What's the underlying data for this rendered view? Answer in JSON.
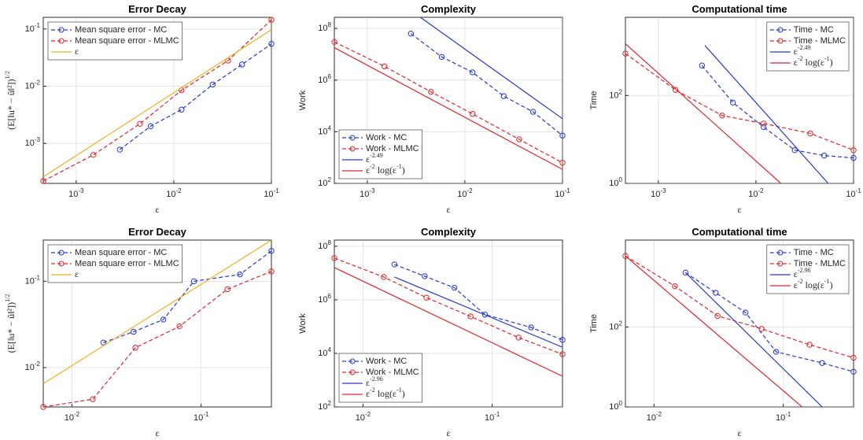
{
  "chart_data": [
    {
      "type": "line",
      "title": "Error Decay",
      "xlabel": "ε",
      "ylabel": "(E[‖u* − û‖²])^{1/2}",
      "xscale": "log",
      "yscale": "log",
      "grid": true,
      "legend": "upper left",
      "xlim": [
        0.00046,
        0.1
      ],
      "ylim": [
        0.0002,
        0.16
      ],
      "xticks": [
        {
          "value": 0.001,
          "label": "10^{-3}"
        },
        {
          "value": 0.01,
          "label": "10^{-2}"
        },
        {
          "value": 0.1,
          "label": "10^{-1}"
        }
      ],
      "yticks": [
        {
          "value": 0.001,
          "label": "10^{-3}"
        },
        {
          "value": 0.01,
          "label": "10^{-2}"
        },
        {
          "value": 0.1,
          "label": "10^{-1}"
        }
      ],
      "series": [
        {
          "name": "Mean square error - MC",
          "color": "#2638d6",
          "line": "dashed",
          "marker": "circle",
          "x": [
            0.0028,
            0.0058,
            0.012,
            0.025,
            0.05,
            0.1
          ],
          "values": [
            0.00078,
            0.002,
            0.0039,
            0.0107,
            0.024,
            0.055
          ]
        },
        {
          "name": "Mean square error - MLMC",
          "color": "#e0252a",
          "line": "dashed",
          "marker": "circle",
          "x": [
            0.00046,
            0.0015,
            0.0045,
            0.012,
            0.036,
            0.1
          ],
          "values": [
            0.00022,
            0.00063,
            0.0022,
            0.0085,
            0.028,
            0.145
          ]
        },
        {
          "name": "ε",
          "color": "#edb120",
          "line": "solid",
          "marker": "none",
          "x": [
            0.00046,
            0.1
          ],
          "values": [
            0.00026,
            0.097
          ]
        }
      ]
    },
    {
      "type": "line",
      "title": "Complexity",
      "xlabel": "ε",
      "ylabel": "Work",
      "xscale": "log",
      "yscale": "log",
      "grid": true,
      "legend": "lower left",
      "xlim": [
        0.00046,
        0.1
      ],
      "ylim": [
        100,
        270000000
      ],
      "xticks": [
        {
          "value": 0.001,
          "label": "10^{-3}"
        },
        {
          "value": 0.01,
          "label": "10^{-2}"
        },
        {
          "value": 0.1,
          "label": "10^{-1}"
        }
      ],
      "yticks": [
        {
          "value": 100,
          "label": "10^{2}"
        },
        {
          "value": 10000,
          "label": "10^{4}"
        },
        {
          "value": 1000000,
          "label": "10^{6}"
        },
        {
          "value": 100000000,
          "label": "10^{8}"
        }
      ],
      "series": [
        {
          "name": "Work - MC",
          "color": "#2638d6",
          "line": "dashed",
          "marker": "circle",
          "x": [
            0.0028,
            0.0058,
            0.012,
            0.025,
            0.05,
            0.1
          ],
          "values": [
            63000000,
            7900000,
            2000000,
            240000,
            59000,
            7100
          ]
        },
        {
          "name": "Work - MLMC",
          "color": "#e0252a",
          "line": "dashed",
          "marker": "circle",
          "x": [
            0.00046,
            0.0015,
            0.0045,
            0.012,
            0.036,
            0.1
          ],
          "values": [
            30000000,
            3400000,
            350000,
            49000,
            5100,
            630
          ]
        },
        {
          "name": "ε^{-2.49}",
          "color": "#2638d6",
          "line": "solid",
          "marker": "none",
          "x": [
            0.0035,
            0.1
          ],
          "values": [
            270000000,
            32000
          ]
        },
        {
          "name": "ε^{-2} log(ε^{-1})",
          "color": "#e0252a",
          "line": "solid",
          "marker": "none",
          "x": [
            0.00046,
            0.1
          ],
          "values": [
            18000000,
            350
          ]
        }
      ]
    },
    {
      "type": "line",
      "title": "Computational time",
      "xlabel": "ε",
      "ylabel": "Time",
      "xscale": "log",
      "yscale": "log",
      "grid": true,
      "legend": "upper right",
      "xlim": [
        0.00046,
        0.1
      ],
      "ylim": [
        1,
        6000
      ],
      "xticks": [
        {
          "value": 0.001,
          "label": "10^{-3}"
        },
        {
          "value": 0.01,
          "label": "10^{-2}"
        },
        {
          "value": 0.1,
          "label": "10^{-1}"
        }
      ],
      "yticks": [
        {
          "value": 1,
          "label": "10^{0}"
        },
        {
          "value": 100,
          "label": "10^{2}"
        }
      ],
      "series": [
        {
          "name": "Time - MC",
          "color": "#2638d6",
          "line": "dashed",
          "marker": "circle",
          "x": [
            0.0028,
            0.0058,
            0.012,
            0.025,
            0.05,
            0.1
          ],
          "values": [
            480,
            69,
            19,
            5.7,
            4.3,
            3.8
          ]
        },
        {
          "name": "Time - MLMC",
          "color": "#e0252a",
          "line": "dashed",
          "marker": "circle",
          "x": [
            0.00046,
            0.0015,
            0.0045,
            0.012,
            0.036,
            0.1
          ],
          "values": [
            900,
            134,
            35,
            23,
            13.7,
            5.7
          ]
        },
        {
          "name": "ε^{-2.49}",
          "color": "#2638d6",
          "line": "solid",
          "marker": "none",
          "x": [
            0.003,
            0.055
          ],
          "values": [
            1370,
            1
          ]
        },
        {
          "name": "ε^{-2} log(ε^{-1})",
          "color": "#e0252a",
          "line": "solid",
          "marker": "none",
          "x": [
            0.00046,
            0.018
          ],
          "values": [
            1500,
            1
          ]
        }
      ]
    },
    {
      "type": "line",
      "title": "Error Decay",
      "xlabel": "ε",
      "ylabel": "(E[‖u* − û‖²])^{1/2}",
      "xscale": "log",
      "yscale": "log",
      "grid": true,
      "legend": "upper left",
      "xlim": [
        0.006,
        0.35
      ],
      "ylim": [
        0.0035,
        0.3
      ],
      "xticks": [
        {
          "value": 0.01,
          "label": "10^{-2}"
        },
        {
          "value": 0.1,
          "label": "10^{-1}"
        }
      ],
      "yticks": [
        {
          "value": 0.01,
          "label": "10^{-2}"
        },
        {
          "value": 0.1,
          "label": "10^{-1}"
        }
      ],
      "series": [
        {
          "name": "Mean square error - MC",
          "color": "#2638d6",
          "line": "dashed",
          "marker": "circle",
          "x": [
            0.0175,
            0.03,
            0.051,
            0.088,
            0.2,
            0.35
          ],
          "values": [
            0.0195,
            0.026,
            0.036,
            0.1,
            0.12,
            0.225
          ]
        },
        {
          "name": "Mean square error - MLMC",
          "color": "#e0252a",
          "line": "dashed",
          "marker": "circle",
          "x": [
            0.006,
            0.0145,
            0.031,
            0.068,
            0.16,
            0.35
          ],
          "values": [
            0.0035,
            0.0043,
            0.017,
            0.03,
            0.081,
            0.13
          ]
        },
        {
          "name": "ε",
          "color": "#edb120",
          "line": "solid",
          "marker": "none",
          "x": [
            0.006,
            0.35
          ],
          "values": [
            0.0065,
            0.3
          ]
        }
      ]
    },
    {
      "type": "line",
      "title": "Complexity",
      "xlabel": "ε",
      "ylabel": "Work",
      "xscale": "log",
      "yscale": "log",
      "grid": true,
      "legend": "lower left",
      "xlim": [
        0.006,
        0.35
      ],
      "ylim": [
        100,
        170000000
      ],
      "xticks": [
        {
          "value": 0.01,
          "label": "10^{-2}"
        },
        {
          "value": 0.1,
          "label": "10^{-1}"
        }
      ],
      "yticks": [
        {
          "value": 100,
          "label": "10^{2}"
        },
        {
          "value": 10000,
          "label": "10^{4}"
        },
        {
          "value": 1000000,
          "label": "10^{6}"
        },
        {
          "value": 100000000,
          "label": "10^{8}"
        }
      ],
      "series": [
        {
          "name": "Work - MC",
          "color": "#2638d6",
          "line": "dashed",
          "marker": "circle",
          "x": [
            0.0175,
            0.03,
            0.051,
            0.088,
            0.2,
            0.35
          ],
          "values": [
            21000000,
            7600000,
            2800000,
            280000,
            93000,
            32000
          ]
        },
        {
          "name": "Work - MLMC",
          "color": "#e0252a",
          "line": "dashed",
          "marker": "circle",
          "x": [
            0.006,
            0.0145,
            0.031,
            0.068,
            0.16,
            0.35
          ],
          "values": [
            36000000,
            7100000,
            1200000,
            240000,
            39000,
            9300
          ]
        },
        {
          "name": "ε^{-2.96}",
          "color": "#2638d6",
          "line": "solid",
          "marker": "none",
          "x": [
            0.0175,
            0.35
          ],
          "values": [
            7100000,
            17000
          ]
        },
        {
          "name": "ε^{-2} log(ε^{-1})",
          "color": "#e0252a",
          "line": "solid",
          "marker": "none",
          "x": [
            0.006,
            0.35
          ],
          "values": [
            16000000,
            1400
          ]
        }
      ]
    },
    {
      "type": "line",
      "title": "Computational time",
      "xlabel": "ε",
      "ylabel": "Time",
      "xscale": "log",
      "yscale": "log",
      "grid": true,
      "legend": "upper right",
      "xlim": [
        0.006,
        0.35
      ],
      "ylim": [
        1,
        15000
      ],
      "xticks": [
        {
          "value": 0.01,
          "label": "10^{-2}"
        },
        {
          "value": 0.1,
          "label": "10^{-1}"
        }
      ],
      "yticks": [
        {
          "value": 1,
          "label": "10^{0}"
        },
        {
          "value": 100,
          "label": "10^{2}"
        }
      ],
      "series": [
        {
          "name": "Time - MC",
          "color": "#2638d6",
          "line": "dashed",
          "marker": "circle",
          "x": [
            0.0175,
            0.03,
            0.051,
            0.088,
            0.2,
            0.35
          ],
          "values": [
            2300,
            720,
            230,
            24,
            12.6,
            7.6
          ]
        },
        {
          "name": "Time - MLMC",
          "color": "#e0252a",
          "line": "dashed",
          "marker": "circle",
          "x": [
            0.006,
            0.0145,
            0.031,
            0.068,
            0.16,
            0.35
          ],
          "values": [
            6000,
            1050,
            190,
            90,
            36,
            17
          ]
        },
        {
          "name": "ε^{-2.96}",
          "color": "#2638d6",
          "line": "solid",
          "marker": "none",
          "x": [
            0.0175,
            0.2
          ],
          "values": [
            2300,
            1
          ]
        },
        {
          "name": "ε^{-2} log(ε^{-1})",
          "color": "#e0252a",
          "line": "solid",
          "marker": "none",
          "x": [
            0.006,
            0.14
          ],
          "values": [
            6000,
            1
          ]
        }
      ]
    }
  ]
}
